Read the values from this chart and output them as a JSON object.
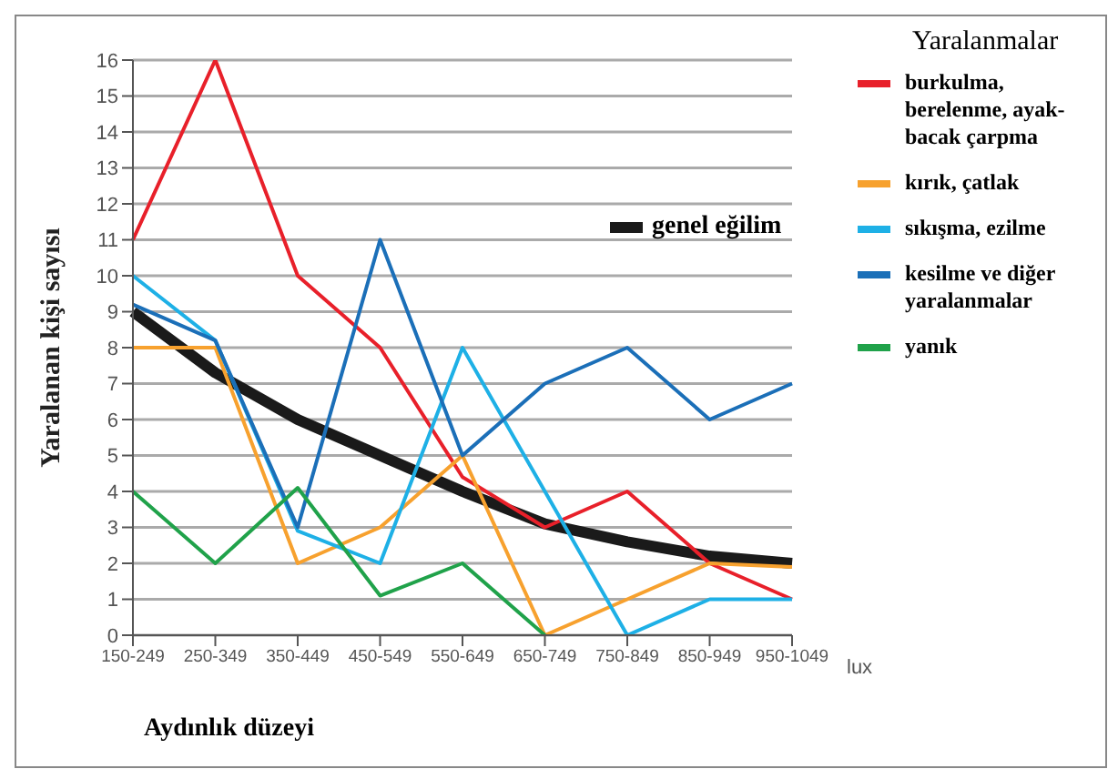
{
  "chart_data": {
    "type": "line",
    "xlabel": "Aydınlık düzeyi",
    "ylabel": "Yaralanan kişi sayısı",
    "legend_title": "Yaralanmalar",
    "categories": [
      "150-249",
      "250-349",
      "350-449",
      "450-549",
      "550-649",
      "650-749",
      "750-849",
      "850-949",
      "950-1049"
    ],
    "series": [
      {
        "name": "burkulma, berelenme, ayak-bacak çarpma",
        "color": "#e8202a",
        "values": [
          11,
          16,
          10,
          8,
          4.4,
          3,
          4,
          2,
          1
        ]
      },
      {
        "name": "kırık, çatlak",
        "color": "#f7a12e",
        "values": [
          8,
          8,
          2,
          3,
          5,
          0,
          1,
          2,
          1.9
        ]
      },
      {
        "name": "sıkışma, ezilme",
        "color": "#1eb0e6",
        "values": [
          10,
          8.2,
          2.9,
          2,
          8,
          4,
          0,
          1,
          1
        ]
      },
      {
        "name": "kesilme ve diğer yaralanmalar",
        "color": "#1b6fb8",
        "values": [
          9.2,
          8.2,
          3,
          11,
          5,
          7,
          8,
          6,
          7
        ]
      },
      {
        "name": "yanık",
        "color": "#20a24a",
        "values": [
          4,
          2,
          4.1,
          1.1,
          2,
          0,
          null,
          null,
          null
        ]
      },
      {
        "name": "genel eğilim",
        "color": "#1a1a1a",
        "values": [
          9,
          7.3,
          6,
          5,
          4,
          3.1,
          2.6,
          2.2,
          2
        ]
      }
    ],
    "ylim": [
      0,
      16
    ],
    "yticks": [
      0,
      1,
      2,
      3,
      4,
      5,
      6,
      7,
      8,
      9,
      10,
      11,
      12,
      13,
      14,
      15,
      16
    ],
    "grid": "y",
    "legend": "right",
    "marker": "none",
    "line_style": "solid",
    "annotations": [
      "lux"
    ]
  }
}
